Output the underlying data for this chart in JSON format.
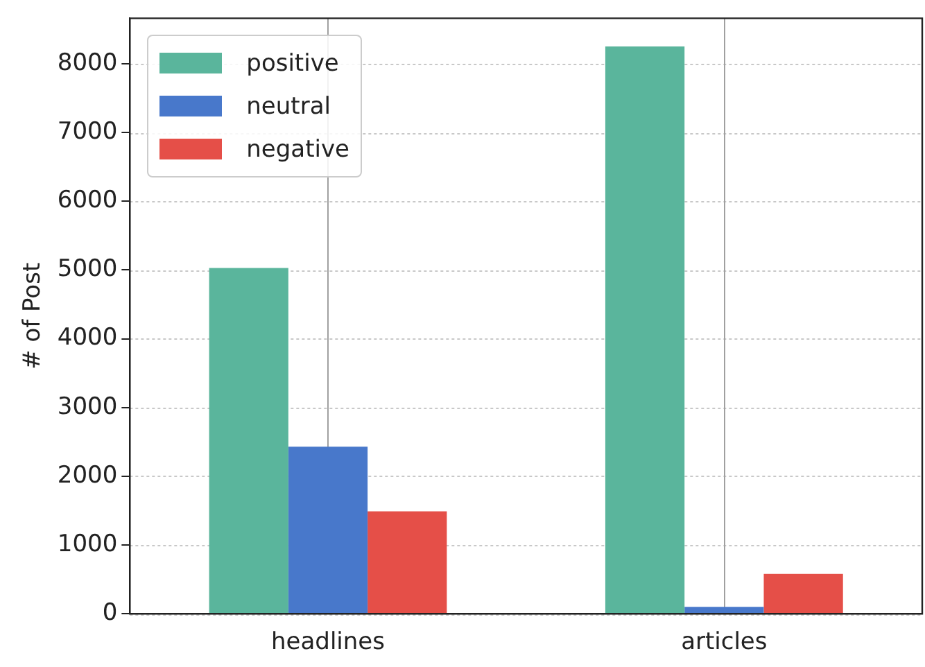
{
  "chart_data": {
    "type": "bar",
    "ylabel": "# of Post",
    "categories": [
      "headlines",
      "articles"
    ],
    "series": [
      {
        "name": "positive",
        "color": "#5ab59c",
        "values": [
          5030,
          8250
        ]
      },
      {
        "name": "neutral",
        "color": "#4878cb",
        "values": [
          2430,
          100
        ]
      },
      {
        "name": "negative",
        "color": "#e54f48",
        "values": [
          1490,
          580
        ]
      }
    ],
    "ylim": [
      0,
      8660
    ],
    "yticks": [
      0,
      1000,
      2000,
      3000,
      4000,
      5000,
      6000,
      7000,
      8000
    ],
    "grid": true,
    "legend": "top left"
  }
}
